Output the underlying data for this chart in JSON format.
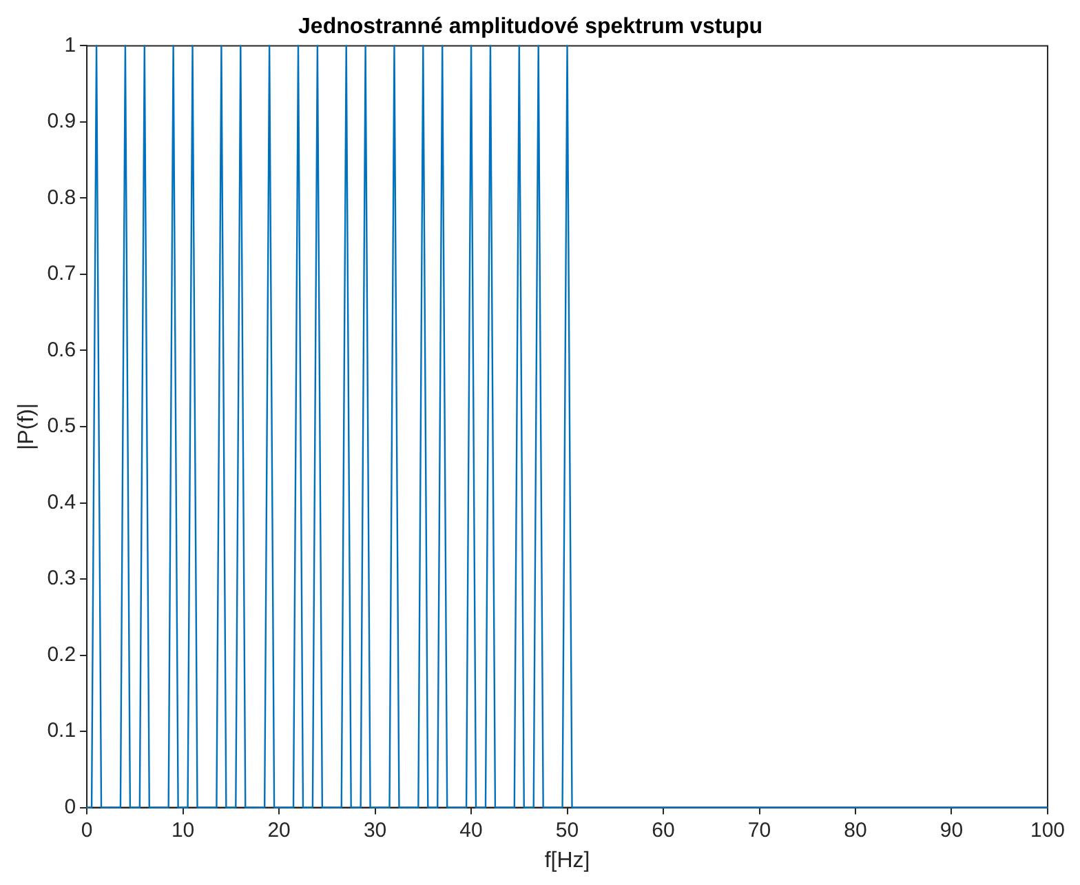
{
  "chart_data": {
    "type": "line",
    "title": "Jednostranné amplitudové spektrum vstupu",
    "xlabel": "f[Hz]",
    "ylabel": "|P(f)|",
    "x": [
      0,
      0.5,
      1,
      1.5,
      3.5,
      4,
      4.5,
      5.5,
      6,
      6.5,
      8.5,
      9,
      9.5,
      10.5,
      11,
      11.5,
      13.5,
      14,
      14.5,
      15.5,
      16,
      16.5,
      18.5,
      19,
      19.5,
      21.5,
      22,
      22.5,
      23.5,
      24,
      24.5,
      26.5,
      27,
      27.5,
      28.5,
      29,
      29.5,
      31.5,
      32,
      32.5,
      34.5,
      35,
      35.5,
      36.5,
      37,
      37.5,
      39.5,
      40,
      40.5,
      41.5,
      42,
      42.5,
      44.5,
      45,
      45.5,
      46.5,
      47,
      47.5,
      49.5,
      50,
      50.5,
      100
    ],
    "series": [
      {
        "color": "#0072bd",
        "values": [
          0,
          0,
          1,
          0,
          0,
          1,
          0,
          0,
          1,
          0,
          0,
          1,
          0,
          0,
          1,
          0,
          0,
          1,
          0,
          0,
          1,
          0,
          0,
          1,
          0,
          0,
          1,
          0,
          0,
          1,
          0,
          0,
          1,
          0,
          0,
          1,
          0,
          0,
          1,
          0,
          0,
          1,
          0,
          0,
          1,
          0,
          0,
          1,
          0,
          0,
          1,
          0,
          0,
          1,
          0,
          0,
          1,
          0,
          0,
          1,
          0,
          0
        ]
      }
    ],
    "xlim": [
      0,
      100
    ],
    "xticks": [
      0,
      10,
      20,
      30,
      40,
      50,
      60,
      70,
      80,
      90,
      100
    ],
    "ylim": [
      0,
      1
    ],
    "yticks": [
      0,
      0.1,
      0.2,
      0.3,
      0.4,
      0.5,
      0.6,
      0.7,
      0.8,
      0.9,
      1
    ],
    "grid": false,
    "legend": false,
    "marker": "none",
    "line_style": "solid"
  }
}
